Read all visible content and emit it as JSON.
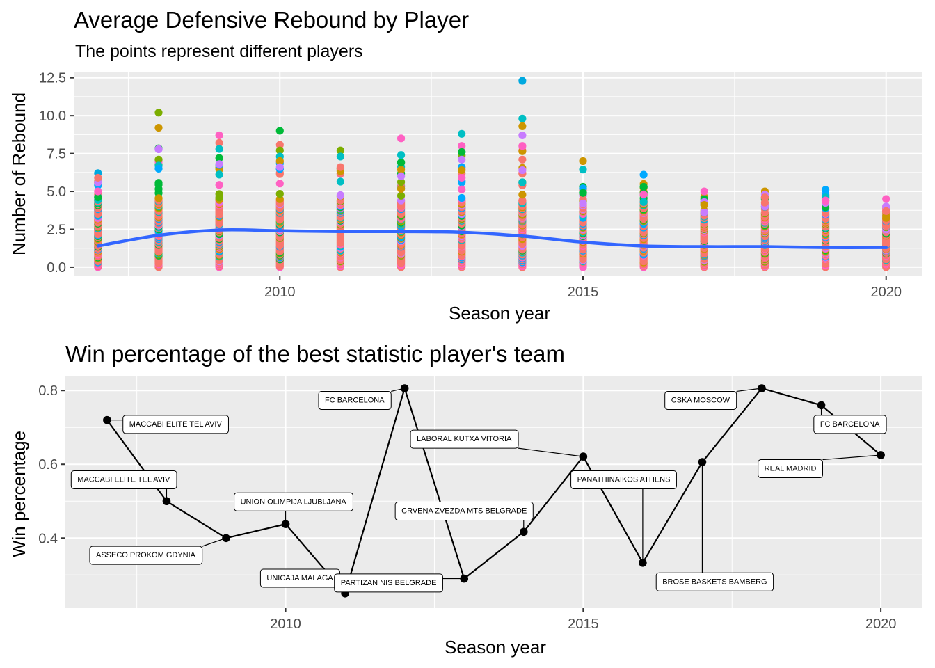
{
  "chart_data": [
    {
      "type": "scatter",
      "title": "Average Defensive Rebound by Player",
      "subtitle": "The points represent different players",
      "xlabel": "Season year",
      "ylabel": "Number of Rebound",
      "xlim": [
        2006.6,
        2020.6
      ],
      "ylim": [
        -0.6,
        12.9
      ],
      "x_ticks": [
        2010,
        2015,
        2020
      ],
      "y_ticks": [
        0.0,
        2.5,
        5.0,
        7.5,
        10.0,
        12.5
      ],
      "y_tick_labels": [
        "0.0",
        "2.5",
        "5.0",
        "7.5",
        "10.0",
        "12.5"
      ],
      "grid": true,
      "legend": "none",
      "seasons": [
        2007,
        2008,
        2009,
        2010,
        2011,
        2012,
        2013,
        2014,
        2015,
        2016,
        2017,
        2018,
        2019,
        2020
      ],
      "season_max": [
        6.2,
        10.2,
        8.7,
        9.0,
        7.7,
        8.5,
        8.8,
        12.3,
        7.0,
        6.1,
        5.0,
        5.0,
        5.1,
        4.5
      ],
      "highlight_points": [
        {
          "x": 2007,
          "y": 6.2,
          "color": "#00A9E0"
        },
        {
          "x": 2007,
          "y": 5.9,
          "color": "#F8766D"
        },
        {
          "x": 2007,
          "y": 5.0,
          "color": "#FF61C3"
        },
        {
          "x": 2008,
          "y": 10.2,
          "color": "#7CAE00"
        },
        {
          "x": 2008,
          "y": 9.2,
          "color": "#CD9600"
        },
        {
          "x": 2008,
          "y": 7.8,
          "color": "#C77CFF"
        },
        {
          "x": 2008,
          "y": 7.1,
          "color": "#7CAE00"
        },
        {
          "x": 2008,
          "y": 6.7,
          "color": "#00BFC4"
        },
        {
          "x": 2008,
          "y": 6.5,
          "color": "#00A9FF"
        },
        {
          "x": 2009,
          "y": 8.7,
          "color": "#FF61C3"
        },
        {
          "x": 2009,
          "y": 8.2,
          "color": "#F8766D"
        },
        {
          "x": 2009,
          "y": 7.8,
          "color": "#00BFC4"
        },
        {
          "x": 2009,
          "y": 7.2,
          "color": "#00BA38"
        },
        {
          "x": 2009,
          "y": 6.8,
          "color": "#C77CFF"
        },
        {
          "x": 2010,
          "y": 9.0,
          "color": "#00BA38"
        },
        {
          "x": 2010,
          "y": 7.7,
          "color": "#7CAE00"
        },
        {
          "x": 2010,
          "y": 7.3,
          "color": "#00BFC4"
        },
        {
          "x": 2010,
          "y": 7.0,
          "color": "#CD9600"
        },
        {
          "x": 2010,
          "y": 6.6,
          "color": "#C77CFF"
        },
        {
          "x": 2011,
          "y": 7.7,
          "color": "#7CAE00"
        },
        {
          "x": 2011,
          "y": 7.3,
          "color": "#00BFC4"
        },
        {
          "x": 2011,
          "y": 6.6,
          "color": "#F8766D"
        },
        {
          "x": 2012,
          "y": 8.5,
          "color": "#FF61C3"
        },
        {
          "x": 2012,
          "y": 7.4,
          "color": "#00BFC4"
        },
        {
          "x": 2012,
          "y": 6.9,
          "color": "#00BA38"
        },
        {
          "x": 2012,
          "y": 6.0,
          "color": "#C77CFF"
        },
        {
          "x": 2013,
          "y": 8.8,
          "color": "#00BFC4"
        },
        {
          "x": 2013,
          "y": 8.0,
          "color": "#FF61C3"
        },
        {
          "x": 2013,
          "y": 7.6,
          "color": "#00BA38"
        },
        {
          "x": 2013,
          "y": 7.1,
          "color": "#C77CFF"
        },
        {
          "x": 2013,
          "y": 6.6,
          "color": "#00A9FF"
        },
        {
          "x": 2013,
          "y": 6.4,
          "color": "#CD9600"
        },
        {
          "x": 2014,
          "y": 12.3,
          "color": "#00A9E0"
        },
        {
          "x": 2014,
          "y": 9.3,
          "color": "#CD9600"
        },
        {
          "x": 2014,
          "y": 8.7,
          "color": "#C77CFF"
        },
        {
          "x": 2014,
          "y": 8.0,
          "color": "#FF61C3"
        },
        {
          "x": 2014,
          "y": 7.1,
          "color": "#F8766D"
        },
        {
          "x": 2014,
          "y": 6.4,
          "color": "#C77CFF"
        },
        {
          "x": 2014,
          "y": 5.6,
          "color": "#00BFC4"
        },
        {
          "x": 2015,
          "y": 7.0,
          "color": "#CD9600"
        },
        {
          "x": 2015,
          "y": 5.2,
          "color": "#00A9FF"
        },
        {
          "x": 2015,
          "y": 4.9,
          "color": "#00BA38"
        },
        {
          "x": 2015,
          "y": 4.2,
          "color": "#C77CFF"
        },
        {
          "x": 2016,
          "y": 6.1,
          "color": "#00A9FF"
        },
        {
          "x": 2016,
          "y": 5.3,
          "color": "#00BA38"
        },
        {
          "x": 2016,
          "y": 4.8,
          "color": "#FF61C3"
        },
        {
          "x": 2016,
          "y": 4.3,
          "color": "#00BFC4"
        },
        {
          "x": 2017,
          "y": 5.0,
          "color": "#FF61C3"
        },
        {
          "x": 2017,
          "y": 4.3,
          "color": "#C77CFF"
        },
        {
          "x": 2017,
          "y": 4.1,
          "color": "#CD9600"
        },
        {
          "x": 2018,
          "y": 5.0,
          "color": "#CD9600"
        },
        {
          "x": 2018,
          "y": 4.8,
          "color": "#C77CFF"
        },
        {
          "x": 2018,
          "y": 4.6,
          "color": "#F8766D"
        },
        {
          "x": 2019,
          "y": 5.1,
          "color": "#00A9FF"
        },
        {
          "x": 2019,
          "y": 4.6,
          "color": "#00BFC4"
        },
        {
          "x": 2019,
          "y": 4.4,
          "color": "#FF61C3"
        },
        {
          "x": 2020,
          "y": 4.5,
          "color": "#FF61C3"
        },
        {
          "x": 2020,
          "y": 4.0,
          "color": "#C77CFF"
        },
        {
          "x": 2020,
          "y": 3.7,
          "color": "#F8766D"
        }
      ],
      "smooth_line": {
        "color": "#3366FF",
        "x": [
          2007,
          2008,
          2009,
          2010,
          2011,
          2012,
          2013,
          2014,
          2015,
          2016,
          2017,
          2018,
          2019,
          2020
        ],
        "y": [
          1.4,
          2.1,
          2.45,
          2.4,
          2.35,
          2.35,
          2.3,
          2.05,
          1.65,
          1.4,
          1.35,
          1.35,
          1.3,
          1.3
        ]
      },
      "point_palette": [
        "#F8766D",
        "#CD9600",
        "#7CAE00",
        "#00BA38",
        "#00BFC4",
        "#00A9FF",
        "#C77CFF",
        "#FF61C3"
      ]
    },
    {
      "type": "line",
      "title": "Win percentage of the best statistic player's team",
      "xlabel": "Season year",
      "ylabel": "Win percentage",
      "xlim": [
        2006.3,
        2020.7
      ],
      "ylim": [
        0.21,
        0.84
      ],
      "x_ticks": [
        2010,
        2015,
        2020
      ],
      "y_ticks": [
        0.4,
        0.6,
        0.8
      ],
      "y_tick_labels": [
        "0.4",
        "0.6",
        "0.8"
      ],
      "grid": true,
      "legend": "none",
      "series": [
        {
          "x": [
            2007,
            2008,
            2009,
            2010,
            2011,
            2012,
            2013,
            2014,
            2015,
            2016,
            2017,
            2018,
            2019,
            2020
          ],
          "y": [
            0.72,
            0.5,
            0.4,
            0.438,
            0.25,
            0.806,
            0.29,
            0.417,
            0.621,
            0.333,
            0.606,
            0.806,
            0.76,
            0.625
          ],
          "labels": [
            "MACCABI ELITE TEL AVIV",
            "MACCABI ELITE TEL AVIV",
            "ASSECO PROKOM GDYNIA",
            "UNION OLIMPIJA LJUBLJANA",
            "UNICAJA MALAGA",
            "FC BARCELONA",
            "PARTIZAN NIS BELGRADE",
            "CRVENA ZVEZDA MTS BELGRADE",
            "LABORAL KUTXA VITORIA",
            "PANATHINAIKOS ATHENS",
            "BROSE BASKETS BAMBERG",
            "CSKA MOSCOW",
            "FC BARCELONA",
            "REAL MADRID"
          ],
          "label_positions": [
            {
              "x": 2008.15,
              "y": 0.71
            },
            {
              "x": 2007.28,
              "y": 0.56
            },
            {
              "x": 2007.65,
              "y": 0.355
            },
            {
              "x": 2010.13,
              "y": 0.5
            },
            {
              "x": 2010.24,
              "y": 0.293
            },
            {
              "x": 2011.16,
              "y": 0.775
            },
            {
              "x": 2011.73,
              "y": 0.28
            },
            {
              "x": 2013.0,
              "y": 0.475
            },
            {
              "x": 2013.0,
              "y": 0.67
            },
            {
              "x": 2015.68,
              "y": 0.56
            },
            {
              "x": 2017.21,
              "y": 0.283
            },
            {
              "x": 2016.97,
              "y": 0.775
            },
            {
              "x": 2019.48,
              "y": 0.71
            },
            {
              "x": 2018.48,
              "y": 0.59
            }
          ]
        }
      ]
    }
  ]
}
